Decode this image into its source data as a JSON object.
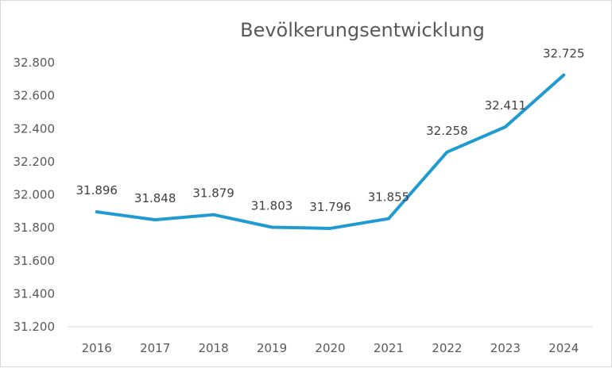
{
  "chart_data": {
    "type": "line",
    "title": "Bevölkerungsentwicklung",
    "xlabel": "",
    "ylabel": "",
    "categories": [
      "2016",
      "2017",
      "2018",
      "2019",
      "2020",
      "2021",
      "2022",
      "2023",
      "2024"
    ],
    "values": [
      31896,
      31848,
      31879,
      31803,
      31796,
      31855,
      32258,
      32411,
      32725
    ],
    "value_labels": [
      "31.896",
      "31.848",
      "31.879",
      "31.803",
      "31.796",
      "31.855",
      "32.258",
      "32.411",
      "32.725"
    ],
    "ylim": [
      31200,
      32800
    ],
    "yticks": [
      31200,
      31400,
      31600,
      31800,
      32000,
      32200,
      32400,
      32600,
      32800
    ],
    "ytick_labels": [
      "31.200",
      "31.400",
      "31.600",
      "31.800",
      "32.000",
      "32.200",
      "32.400",
      "32.600",
      "32.800"
    ],
    "grid": false,
    "legend": "none",
    "line_color": "#1f9bd1"
  }
}
